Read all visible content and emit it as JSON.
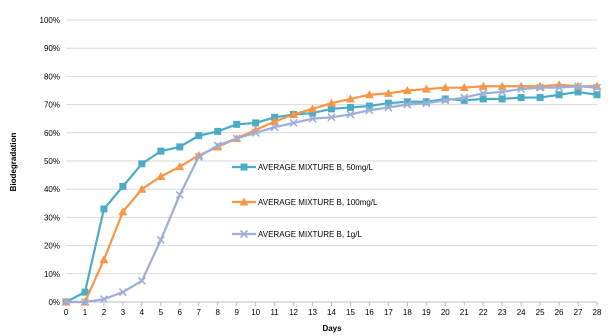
{
  "chart_data": {
    "type": "line",
    "xlabel": "Days",
    "ylabel": "Biodegradation",
    "x": [
      0,
      1,
      2,
      3,
      4,
      5,
      6,
      7,
      8,
      9,
      10,
      11,
      12,
      13,
      14,
      15,
      16,
      17,
      18,
      19,
      20,
      21,
      22,
      23,
      24,
      25,
      26,
      27,
      28
    ],
    "x_tick_labels": [
      "0",
      "1",
      "2",
      "3",
      "4",
      "5",
      "6",
      "7",
      "8",
      "9",
      "10",
      "11",
      "12",
      "13",
      "14",
      "15",
      "16",
      "17",
      "18",
      "19",
      "20",
      "21",
      "22",
      "23",
      "24",
      "25",
      "26",
      "27",
      "28"
    ],
    "ylim": [
      0,
      100
    ],
    "y_ticks": [
      0,
      10,
      20,
      30,
      40,
      50,
      60,
      70,
      80,
      90,
      100
    ],
    "y_tick_labels": [
      "0%",
      "10%",
      "20%",
      "30%",
      "40%",
      "50%",
      "60%",
      "70%",
      "80%",
      "90%",
      "100%"
    ],
    "grid": true,
    "legend_position": "center",
    "series": [
      {
        "name": "AVERAGE MIXTURE B, 50mg/L",
        "color": "#4BACC6",
        "marker": "square",
        "values": [
          0,
          3.5,
          33,
          41,
          49,
          53.5,
          55,
          59,
          60.5,
          63,
          63.5,
          65.5,
          66.5,
          67,
          68.5,
          69,
          69.5,
          70.5,
          71,
          71,
          72,
          71.5,
          72,
          72,
          72.5,
          72.5,
          73.5,
          74.5,
          73.5
        ]
      },
      {
        "name": "AVERAGE MIXTURE B, 100mg/L",
        "color": "#F79646",
        "marker": "triangle",
        "values": [
          0,
          0,
          15,
          32,
          40,
          44.5,
          48,
          52,
          55,
          58,
          61,
          64,
          66.5,
          68.5,
          70.5,
          72,
          73.5,
          74,
          75,
          75.5,
          76,
          76,
          76.5,
          76.5,
          76.5,
          76.5,
          77,
          76.5,
          76.5
        ]
      },
      {
        "name": "AVERAGE MIXTURE B, 1g/L",
        "color": "#9DAFD8",
        "marker": "x",
        "values": [
          0,
          0,
          1,
          3.5,
          7.5,
          22,
          38,
          51.5,
          55.5,
          58,
          60,
          62,
          63.5,
          65,
          65.5,
          66.5,
          68,
          69,
          70,
          70.5,
          71.5,
          72.5,
          74,
          74.5,
          75.5,
          76,
          76,
          76.5,
          76
        ]
      }
    ]
  }
}
